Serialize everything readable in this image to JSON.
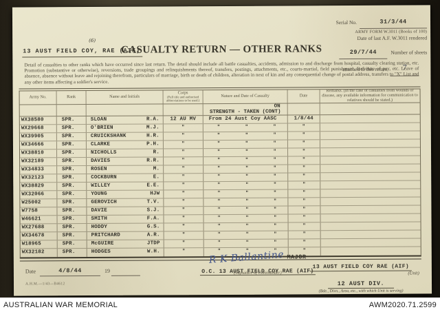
{
  "colors": {
    "paper": "#e6e1c6",
    "ink_typed": "#35332b",
    "ink_print": "#4c473a",
    "ink_hand": "#44568c",
    "photo_bg": "#3d382a",
    "bar_bg": "#ffffff"
  },
  "header": {
    "serial_label": "Serial No.",
    "serial_value": "31/3/44",
    "form_name": "ARMY FORM W.3011 (Books of 100)",
    "date_last_label": "Date of last A.F. W.3011 rendered",
    "date_last_value": "29/7/44",
    "sheets_label_1": "Number of sheets",
    "sheets_label_2": "attached to this return",
    "sheets_value": "7",
    "unit_stamp": "13 AUST FIELD COY, RAE (AIF)",
    "unit_stamp_super": "(6)",
    "title": "CASUALTY RETURN — OTHER RANKS",
    "instructions": "Detail of casualties to other ranks which have occurred since last return.  The detail should include all battle casualties, accidents, admission to and discharge from hospital, casualty clearing station, etc.  Promotion (substantive or otherwise), reversions, trade groupings and relinquishments thereof, transfers, postings, attachments, etc., courts-martial, field punishment, forfeiture of pay, etc.  Leave of absence, absence without leave and rejoining therefrom, particulars of marriage, birth or death of children, alteration in next of kin and any consequential change of postal address, transfers to \"X\" List and any other items affecting a soldier's service."
  },
  "table": {
    "ditto_mark": "\"",
    "section_heading_line1": "ON",
    "section_heading_line2": "STRENGTH - TAKEN (CONT)",
    "columns": [
      {
        "label": "Army No."
      },
      {
        "label": "Rank"
      },
      {
        "label": "Name and Initials"
      },
      {
        "label": "Corps",
        "sub": "(Full title and authorised abbreviations to be used.)"
      },
      {
        "label": "Nature and Date of Casualty"
      },
      {
        "label": "Date"
      },
      {
        "label": "Remarks.",
        "sub": "(In the case of casualties from wounds or disease, any available information for communication to relatives should be stated.)"
      }
    ],
    "rows": [
      {
        "army_no": "WX38580",
        "rank": "SPR.",
        "name": "SLOAN",
        "initials": "R.A.",
        "corps": "12 AU MV",
        "nature": "From 24 Aust Coy AASC",
        "date": "1/8/44",
        "ditto": false
      },
      {
        "army_no": "WX29668",
        "rank": "SPR.",
        "name": "O'BRIEN",
        "initials": "M.J.",
        "ditto": true
      },
      {
        "army_no": "WX39905",
        "rank": "SPR.",
        "name": "CRUICKSHANK",
        "initials": "H.R.",
        "ditto": true
      },
      {
        "army_no": "WX34666",
        "rank": "SPR.",
        "name": "CLARKE",
        "initials": "P.H.",
        "ditto": true
      },
      {
        "army_no": "WX38810",
        "rank": "SPR.",
        "name": "NICHOLLS",
        "initials": "R.",
        "ditto": true
      },
      {
        "army_no": "WX32189",
        "rank": "SPR.",
        "name": "DAVIES",
        "initials": "R.R.",
        "ditto": true
      },
      {
        "army_no": "WX34833",
        "rank": "SPR.",
        "name": "ROSEN",
        "initials": "M.",
        "ditto": true
      },
      {
        "army_no": "WX32123",
        "rank": "SPR.",
        "name": "COCKBURN",
        "initials": "E.",
        "ditto": true
      },
      {
        "army_no": "WX38829",
        "rank": "SPR.",
        "name": "WILLEY",
        "initials": "E.E.",
        "ditto": true
      },
      {
        "army_no": "WX32066",
        "rank": "SPR.",
        "name": "YOUNG",
        "initials": "HJW",
        "ditto": true
      },
      {
        "army_no": "W25002",
        "rank": "SPR.",
        "name": "GEROVICH",
        "initials": "T.V.",
        "ditto": true
      },
      {
        "army_no": "W7758",
        "rank": "SPR.",
        "name": "DAVIE",
        "initials": "S.J.",
        "ditto": true
      },
      {
        "army_no": "W46621",
        "rank": "SPR.",
        "name": "SMITH",
        "initials": "F.A.",
        "ditto": true
      },
      {
        "army_no": "WX27688",
        "rank": "SPR.",
        "name": "HODDY",
        "initials": "G.S.",
        "ditto": true
      },
      {
        "army_no": "WX34678",
        "rank": "SPR.",
        "name": "PRITCHARD",
        "initials": "A.R.",
        "ditto": true
      },
      {
        "army_no": "W18965",
        "rank": "SPR.",
        "name": "McGUIRE",
        "initials": "JTDP",
        "ditto": true
      },
      {
        "army_no": "WX32182",
        "rank": "SPR.",
        "name": "HODGES",
        "initials": "W.H.",
        "ditto": true
      }
    ]
  },
  "footer": {
    "date_label": "Date",
    "date_value": "4/8/44",
    "year_prefix": "19",
    "signature_name": "R K Ballantine",
    "signature_rank": "MAJOR",
    "commander_line": "O.C. 13 AUST FIELD COY RAE (AIF)",
    "signature_caption": "(Signature of Commander)",
    "unit_value": "13 AUST FIELD COY RAE (AIF)",
    "unit_caption": "(Unit)",
    "formation_value": "12 AUST DIV.",
    "formation_caption": "(Bde., Divn., Area, etc., with which Unit is serving)",
    "form_ref": "A.H.M.—1/43—B4612"
  },
  "archive_bar": {
    "left": "AUSTRALIAN WAR MEMORIAL",
    "right": "AWM2020.71.2599"
  }
}
